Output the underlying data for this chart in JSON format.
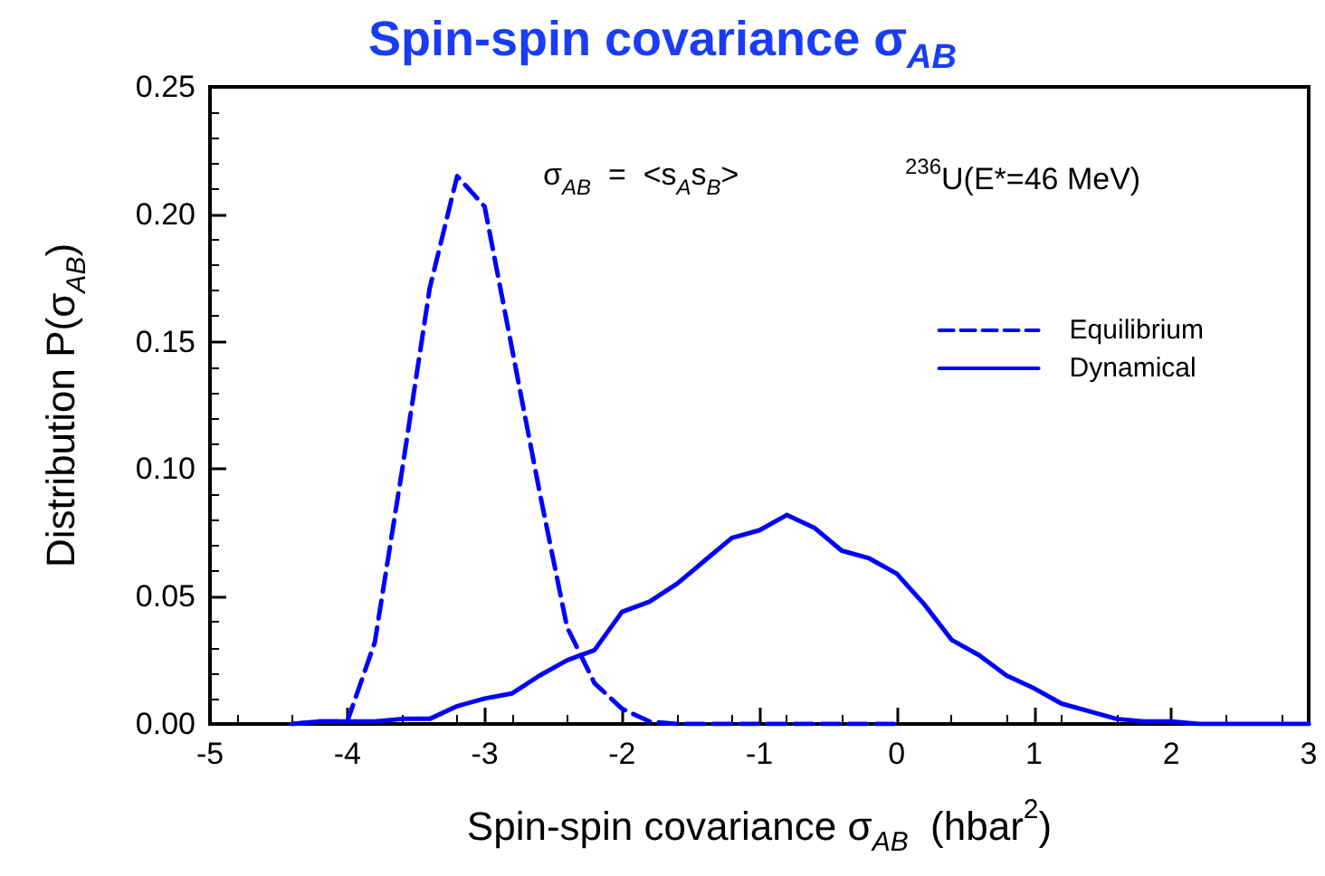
{
  "chart_data": {
    "type": "line",
    "title": "Spin-spin covariance σ$_{AB}$",
    "xlabel": "Spin-spin covariance σ$_{AB}$  (hbar$^{2}$)",
    "ylabel": "Distribution P(σ$_{AB}$)",
    "annotations": [
      "σ$_{AB}$  =  <s$_{A}$s$_{B}$>",
      "$^{236}$U(E*=46 MeV)"
    ],
    "xlim": [
      -5,
      3
    ],
    "xticks": [
      -5,
      -4,
      -3,
      -2,
      -1,
      0,
      1,
      2,
      3
    ],
    "ylim": [
      0,
      0.25
    ],
    "yticks": [
      {
        "value": 0,
        "label": "0.00"
      },
      {
        "value": 0.05,
        "label": "0.05"
      },
      {
        "value": 0.1,
        "label": "0.10"
      },
      {
        "value": 0.15,
        "label": "0.15"
      },
      {
        "value": 0.2,
        "label": "0.20"
      },
      {
        "value": 0.25,
        "label": "0.25"
      }
    ],
    "grid": false,
    "legend": "top right",
    "marker": "none",
    "series": [
      {
        "name": "Equilibrium",
        "color": "#0000ff",
        "line_style": "dashed",
        "x": [
          -4.4,
          -4.2,
          -4.0,
          -3.8,
          -3.6,
          -3.4,
          -3.2,
          -3.0,
          -2.8,
          -2.6,
          -2.4,
          -2.2,
          -2.0,
          -1.8,
          -1.6,
          -1.4,
          -1.2,
          -1.0,
          -0.8,
          -0.6,
          -0.4,
          -0.2,
          0.0
        ],
        "values": [
          0,
          0.001,
          0.001,
          0.032,
          0.1,
          0.171,
          0.215,
          0.203,
          0.147,
          0.091,
          0.038,
          0.016,
          0.006,
          0.001,
          0,
          0,
          0,
          0,
          0,
          0,
          0,
          0,
          0
        ]
      },
      {
        "name": "Dynamical",
        "color": "#0000ff",
        "line_style": "solid",
        "x": [
          -4.4,
          -4.2,
          -4.0,
          -3.8,
          -3.6,
          -3.4,
          -3.2,
          -3.0,
          -2.8,
          -2.6,
          -2.4,
          -2.2,
          -2.0,
          -1.8,
          -1.6,
          -1.4,
          -1.2,
          -1.0,
          -0.8,
          -0.6,
          -0.4,
          -0.2,
          0.0,
          0.2,
          0.4,
          0.6,
          0.8,
          1.0,
          1.2,
          1.4,
          1.6,
          1.8,
          2.0,
          2.2,
          2.4,
          2.6,
          2.8,
          3.0
        ],
        "values": [
          0,
          0.001,
          0.001,
          0.001,
          0.002,
          0.002,
          0.007,
          0.01,
          0.012,
          0.019,
          0.025,
          0.029,
          0.044,
          0.048,
          0.055,
          0.064,
          0.073,
          0.076,
          0.082,
          0.077,
          0.068,
          0.065,
          0.059,
          0.047,
          0.033,
          0.027,
          0.019,
          0.014,
          0.008,
          0.005,
          0.002,
          0.001,
          0.001,
          0,
          0,
          0,
          0,
          0
        ]
      }
    ]
  }
}
